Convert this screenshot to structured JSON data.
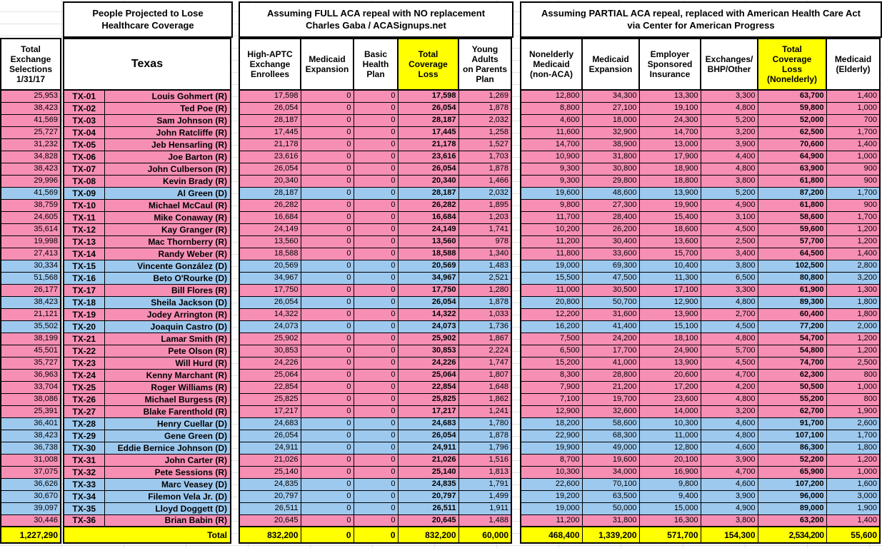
{
  "header": {
    "people_title": "People Projected to Lose\nHealthcare Coverage",
    "left_col": "Total\nExchange\nSelections\n1/31/17",
    "state": "Texas",
    "full_repeal_title": "Assuming FULL ACA repeal with NO replacement\nCharles Gaba / ACASignups.net",
    "partial_repeal_title": "Assuming PARTIAL ACA repeal, replaced with American Health Care Act\nvia Center for American Progress",
    "full_cols": {
      "high_aptc": "High-APTC\nExchange\nEnrollees",
      "medicaid_expansion": "Medicaid\nExpansion",
      "basic_health_plan": "Basic\nHealth\nPlan",
      "total_coverage_loss": "Total\nCoverage\nLoss",
      "young_adults": "Young\nAdults\non Parents\nPlan"
    },
    "partial_cols": {
      "nonelderly_medicaid": "Nonelderly\nMedicaid\n(non-ACA)",
      "medicaid_expansion": "Medicaid\nExpansion",
      "employer_sponsored": "Employer\nSponsored\nInsurance",
      "exchanges_bhp": "Exchanges/\nBHP/Other",
      "total_coverage_loss": "Total\nCoverage\nLoss\n(Nonelderly)",
      "medicaid_elderly": "Medicaid\n(Elderly)"
    }
  },
  "colors": {
    "republican_row": "#F78FB5",
    "democrat_row": "#9EC9EF",
    "highlight": "#FFFF00",
    "gridline": "#E2E2E2"
  },
  "rows": [
    [
      "TX-01",
      "Louis Gohmert (R)",
      "R",
      "25,953",
      "17,598",
      "0",
      "0",
      "17,598",
      "1,269",
      "12,800",
      "34,300",
      "13,300",
      "3,300",
      "63,700",
      "1,400"
    ],
    [
      "TX-02",
      "Ted Poe (R)",
      "R",
      "38,423",
      "26,054",
      "0",
      "0",
      "26,054",
      "1,878",
      "8,800",
      "27,100",
      "19,100",
      "4,800",
      "59,800",
      "1,000"
    ],
    [
      "TX-03",
      "Sam Johnson (R)",
      "R",
      "41,569",
      "28,187",
      "0",
      "0",
      "28,187",
      "2,032",
      "4,600",
      "18,000",
      "24,300",
      "5,200",
      "52,000",
      "700"
    ],
    [
      "TX-04",
      "John Ratcliffe (R)",
      "R",
      "25,727",
      "17,445",
      "0",
      "0",
      "17,445",
      "1,258",
      "11,600",
      "32,900",
      "14,700",
      "3,200",
      "62,500",
      "1,700"
    ],
    [
      "TX-05",
      "Jeb Hensarling (R)",
      "R",
      "31,232",
      "21,178",
      "0",
      "0",
      "21,178",
      "1,527",
      "14,700",
      "38,900",
      "13,000",
      "3,900",
      "70,600",
      "1,400"
    ],
    [
      "TX-06",
      "Joe Barton (R)",
      "R",
      "34,828",
      "23,616",
      "0",
      "0",
      "23,616",
      "1,703",
      "10,900",
      "31,800",
      "17,900",
      "4,400",
      "64,900",
      "1,000"
    ],
    [
      "TX-07",
      "John Culberson (R)",
      "R",
      "38,423",
      "26,054",
      "0",
      "0",
      "26,054",
      "1,878",
      "9,300",
      "30,800",
      "18,900",
      "4,800",
      "63,900",
      "900"
    ],
    [
      "TX-08",
      "Kevin Brady (R)",
      "R",
      "29,996",
      "20,340",
      "0",
      "0",
      "20,340",
      "1,466",
      "9,300",
      "29,800",
      "18,800",
      "3,800",
      "61,800",
      "900"
    ],
    [
      "TX-09",
      "Al Green (D)",
      "D",
      "41,569",
      "28,187",
      "0",
      "0",
      "28,187",
      "2,032",
      "19,600",
      "48,600",
      "13,900",
      "5,200",
      "87,200",
      "1,700"
    ],
    [
      "TX-10",
      "Michael McCaul (R)",
      "R",
      "38,759",
      "26,282",
      "0",
      "0",
      "26,282",
      "1,895",
      "9,800",
      "27,300",
      "19,900",
      "4,900",
      "61,800",
      "900"
    ],
    [
      "TX-11",
      "Mike Conaway (R)",
      "R",
      "24,605",
      "16,684",
      "0",
      "0",
      "16,684",
      "1,203",
      "11,700",
      "28,400",
      "15,400",
      "3,100",
      "58,600",
      "1,700"
    ],
    [
      "TX-12",
      "Kay Granger (R)",
      "R",
      "35,614",
      "24,149",
      "0",
      "0",
      "24,149",
      "1,741",
      "10,200",
      "26,200",
      "18,600",
      "4,500",
      "59,600",
      "1,200"
    ],
    [
      "TX-13",
      "Mac Thornberry (R)",
      "R",
      "19,998",
      "13,560",
      "0",
      "0",
      "13,560",
      "978",
      "11,200",
      "30,400",
      "13,600",
      "2,500",
      "57,700",
      "1,200"
    ],
    [
      "TX-14",
      "Randy Weber (R)",
      "R",
      "27,413",
      "18,588",
      "0",
      "0",
      "18,588",
      "1,340",
      "11,800",
      "33,600",
      "15,700",
      "3,400",
      "64,500",
      "1,400"
    ],
    [
      "TX-15",
      "Vincente González (D)",
      "D",
      "30,334",
      "20,569",
      "0",
      "0",
      "20,569",
      "1,483",
      "19,000",
      "69,300",
      "10,400",
      "3,800",
      "102,500",
      "2,800"
    ],
    [
      "TX-16",
      "Beto O'Rourke (D)",
      "D",
      "51,568",
      "34,967",
      "0",
      "0",
      "34,967",
      "2,521",
      "15,500",
      "47,500",
      "11,300",
      "6,500",
      "80,800",
      "3,200"
    ],
    [
      "TX-17",
      "Bill Flores (R)",
      "R",
      "26,177",
      "17,750",
      "0",
      "0",
      "17,750",
      "1,280",
      "11,000",
      "30,500",
      "17,100",
      "3,300",
      "61,900",
      "1,300"
    ],
    [
      "TX-18",
      "Sheila Jackson (D)",
      "D",
      "38,423",
      "26,054",
      "0",
      "0",
      "26,054",
      "1,878",
      "20,800",
      "50,700",
      "12,900",
      "4,800",
      "89,300",
      "1,800"
    ],
    [
      "TX-19",
      "Jodey Arrington (R)",
      "R",
      "21,121",
      "14,322",
      "0",
      "0",
      "14,322",
      "1,033",
      "12,200",
      "31,600",
      "13,900",
      "2,700",
      "60,400",
      "1,800"
    ],
    [
      "TX-20",
      "Joaquin Castro (D)",
      "D",
      "35,502",
      "24,073",
      "0",
      "0",
      "24,073",
      "1,736",
      "16,200",
      "41,400",
      "15,100",
      "4,500",
      "77,200",
      "2,000"
    ],
    [
      "TX-21",
      "Lamar Smith (R)",
      "R",
      "38,199",
      "25,902",
      "0",
      "0",
      "25,902",
      "1,867",
      "7,500",
      "24,200",
      "18,100",
      "4,800",
      "54,700",
      "1,200"
    ],
    [
      "TX-22",
      "Pete Olson (R)",
      "R",
      "45,501",
      "30,853",
      "0",
      "0",
      "30,853",
      "2,224",
      "6,500",
      "17,700",
      "24,900",
      "5,700",
      "54,800",
      "1,200"
    ],
    [
      "TX-23",
      "Will Hurd (R)",
      "R",
      "35,727",
      "24,226",
      "0",
      "0",
      "24,226",
      "1,747",
      "15,200",
      "41,000",
      "13,900",
      "4,500",
      "74,700",
      "2,500"
    ],
    [
      "TX-24",
      "Kenny Marchant (R)",
      "R",
      "36,963",
      "25,064",
      "0",
      "0",
      "25,064",
      "1,807",
      "8,300",
      "28,800",
      "20,600",
      "4,700",
      "62,300",
      "800"
    ],
    [
      "TX-25",
      "Roger Williams (R)",
      "R",
      "33,704",
      "22,854",
      "0",
      "0",
      "22,854",
      "1,648",
      "7,900",
      "21,200",
      "17,200",
      "4,200",
      "50,500",
      "1,000"
    ],
    [
      "TX-26",
      "Michael Burgess (R)",
      "R",
      "38,086",
      "25,825",
      "0",
      "0",
      "25,825",
      "1,862",
      "7,100",
      "19,700",
      "23,600",
      "4,800",
      "55,200",
      "800"
    ],
    [
      "TX-27",
      "Blake Farenthold (R)",
      "R",
      "25,391",
      "17,217",
      "0",
      "0",
      "17,217",
      "1,241",
      "12,900",
      "32,600",
      "14,000",
      "3,200",
      "62,700",
      "1,900"
    ],
    [
      "TX-28",
      "Henry Cuellar (D)",
      "D",
      "36,401",
      "24,683",
      "0",
      "0",
      "24,683",
      "1,780",
      "18,200",
      "58,600",
      "10,300",
      "4,600",
      "91,700",
      "2,600"
    ],
    [
      "TX-29",
      "Gene Green (D)",
      "D",
      "38,423",
      "26,054",
      "0",
      "0",
      "26,054",
      "1,878",
      "22,900",
      "68,300",
      "11,000",
      "4,800",
      "107,100",
      "1,700"
    ],
    [
      "TX-30",
      "Eddie Bernice Johnson (D)",
      "D",
      "36,738",
      "24,911",
      "0",
      "0",
      "24,911",
      "1,796",
      "19,900",
      "49,000",
      "12,800",
      "4,600",
      "86,300",
      "1,800"
    ],
    [
      "TX-31",
      "John Carter (R)",
      "R",
      "31,008",
      "21,026",
      "0",
      "0",
      "21,026",
      "1,516",
      "8,700",
      "19,600",
      "20,100",
      "3,900",
      "52,200",
      "1,200"
    ],
    [
      "TX-32",
      "Pete Sessions (R)",
      "R",
      "37,075",
      "25,140",
      "0",
      "0",
      "25,140",
      "1,813",
      "10,300",
      "34,000",
      "16,900",
      "4,700",
      "65,900",
      "1,000"
    ],
    [
      "TX-33",
      "Marc Veasey (D)",
      "D",
      "36,626",
      "24,835",
      "0",
      "0",
      "24,835",
      "1,791",
      "22,600",
      "70,100",
      "9,800",
      "4,600",
      "107,200",
      "1,600"
    ],
    [
      "TX-34",
      "Filemon Vela Jr. (D)",
      "D",
      "30,670",
      "20,797",
      "0",
      "0",
      "20,797",
      "1,499",
      "19,200",
      "63,500",
      "9,400",
      "3,900",
      "96,000",
      "3,000"
    ],
    [
      "TX-35",
      "Lloyd Doggett (D)",
      "D",
      "39,097",
      "26,511",
      "0",
      "0",
      "26,511",
      "1,911",
      "19,000",
      "50,000",
      "15,000",
      "4,900",
      "89,000",
      "1,900"
    ],
    [
      "TX-36",
      "Brian Babin (R)",
      "R",
      "30,446",
      "20,645",
      "0",
      "0",
      "20,645",
      "1,488",
      "11,200",
      "31,800",
      "16,300",
      "3,800",
      "63,200",
      "1,400"
    ]
  ],
  "total": {
    "label": "Total",
    "exchange_selections": "1,227,290",
    "high_aptc": "832,200",
    "medicaid_expansion": "0",
    "basic_health_plan": "0",
    "total_coverage_loss": "832,200",
    "young_adults": "60,000",
    "nonelderly_medicaid": "468,400",
    "medicaid_expansion_partial": "1,339,200",
    "employer_sponsored": "571,700",
    "exchanges_bhp": "154,300",
    "total_coverage_loss_nonelderly": "2,534,200",
    "medicaid_elderly": "55,600"
  }
}
